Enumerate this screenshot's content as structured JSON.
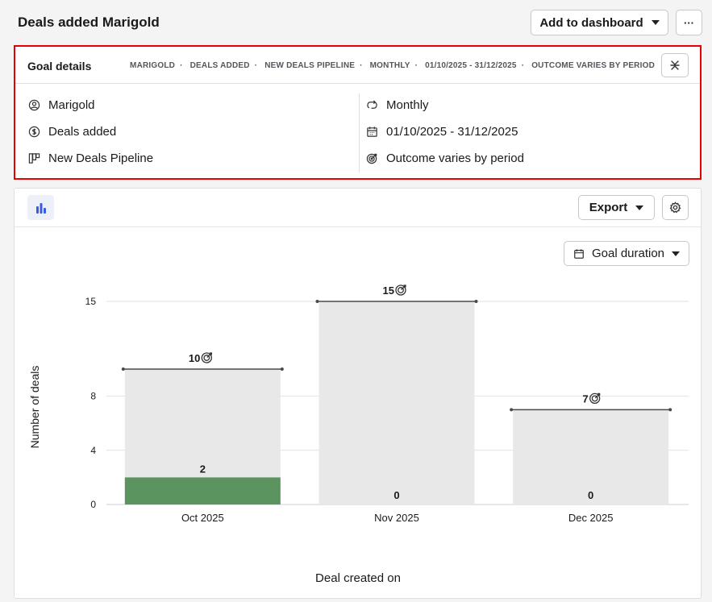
{
  "header": {
    "title": "Deals added Marigold",
    "add_to_dashboard": "Add to dashboard",
    "more": "···"
  },
  "goal": {
    "title": "Goal details",
    "summary": [
      "MARIGOLD",
      "DEALS ADDED",
      "NEW DEALS PIPELINE",
      "MONTHLY",
      "01/10/2025 - 31/12/2025",
      "OUTCOME VARIES BY PERIOD"
    ],
    "assignee": "Marigold",
    "type": "Deals added",
    "pipeline": "New Deals Pipeline",
    "interval": "Monthly",
    "duration": "01/10/2025 - 31/12/2025",
    "outcome": "Outcome varies by period",
    "icons": {
      "assignee": "user-circle-icon",
      "type": "dollar-circle-icon",
      "pipeline": "pipeline-icon",
      "interval": "repeat-icon",
      "duration": "calendar-icon",
      "outcome": "target-icon",
      "close": "collapse-icon"
    }
  },
  "toolbar": {
    "export": "Export",
    "period_select": "Goal duration",
    "icons": {
      "chart_type": "bar-chart-icon",
      "settings": "gear-icon",
      "period": "calendar-icon"
    }
  },
  "chart_data": {
    "type": "bar",
    "categories": [
      "Oct 2025",
      "Nov 2025",
      "Dec 2025"
    ],
    "goals": [
      10,
      15,
      7
    ],
    "values": [
      2,
      0,
      0
    ],
    "ylabel": "Number of deals",
    "xlabel": "Deal created on",
    "yticks": [
      0,
      4,
      8,
      15
    ],
    "ylim": [
      0,
      15
    ],
    "grid": true,
    "colors": {
      "achieved": "#5c9460",
      "goal_bar": "#e8e8e8",
      "goal_line": "#4a4a4a",
      "accent": "#3b5bdb"
    }
  }
}
